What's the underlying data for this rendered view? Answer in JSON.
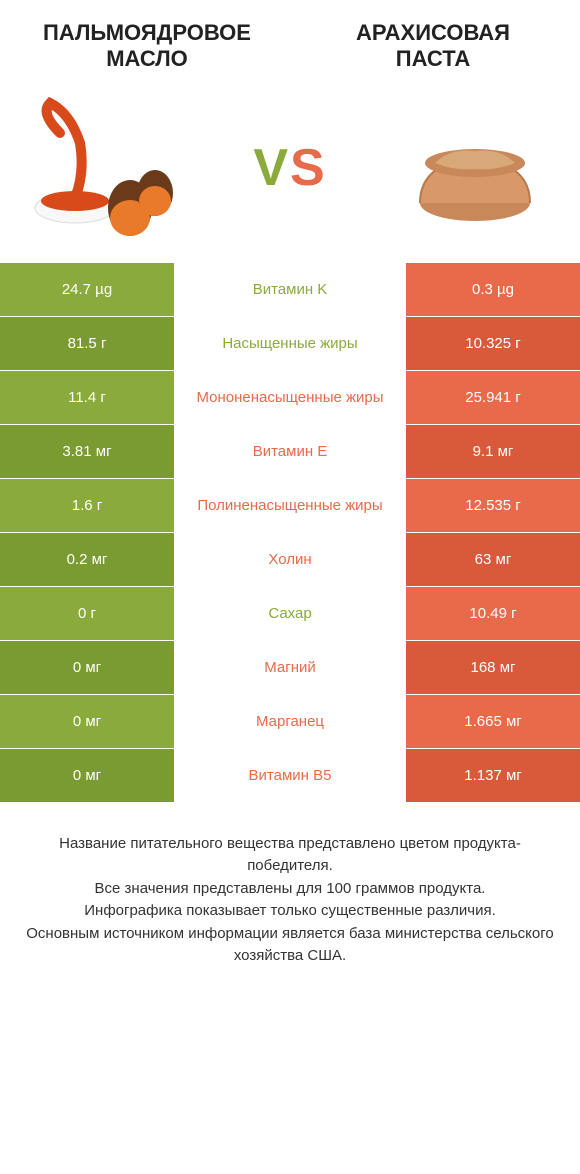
{
  "colors": {
    "green": "#8aaa3b",
    "green_dark": "#7a9a32",
    "orange": "#e86a4a",
    "orange_dark": "#d85a3a",
    "vs_green": "#8aaa3b",
    "vs_orange": "#e86a4a"
  },
  "header": {
    "left_title": "ПАЛЬМОЯДРОВОЕ МАСЛО",
    "right_title": "АРАХИСОВАЯ ПАСТА",
    "vs": "VS"
  },
  "rows": [
    {
      "left": "24.7 µg",
      "label": "Витамин K",
      "right": "0.3 µg",
      "winner": "left"
    },
    {
      "left": "81.5 г",
      "label": "Насыщенные жиры",
      "right": "10.325 г",
      "winner": "left"
    },
    {
      "left": "11.4 г",
      "label": "Мононенасыщенные жиры",
      "right": "25.941 г",
      "winner": "right"
    },
    {
      "left": "3.81 мг",
      "label": "Витамин E",
      "right": "9.1 мг",
      "winner": "right"
    },
    {
      "left": "1.6 г",
      "label": "Полиненасыщенные жиры",
      "right": "12.535 г",
      "winner": "right"
    },
    {
      "left": "0.2 мг",
      "label": "Холин",
      "right": "63 мг",
      "winner": "right"
    },
    {
      "left": "0 г",
      "label": "Сахар",
      "right": "10.49 г",
      "winner": "left"
    },
    {
      "left": "0 мг",
      "label": "Магний",
      "right": "168 мг",
      "winner": "right"
    },
    {
      "left": "0 мг",
      "label": "Марганец",
      "right": "1.665 мг",
      "winner": "right"
    },
    {
      "left": "0 мг",
      "label": "Витамин B5",
      "right": "1.137 мг",
      "winner": "right"
    }
  ],
  "footer": {
    "line1": "Название питательного вещества представлено цветом продукта-победителя.",
    "line2": "Все значения представлены для 100 граммов продукта.",
    "line3": "Инфографика показывает только существенные различия.",
    "line4": "Основным источником информации является база министерства сельского хозяйства США."
  }
}
